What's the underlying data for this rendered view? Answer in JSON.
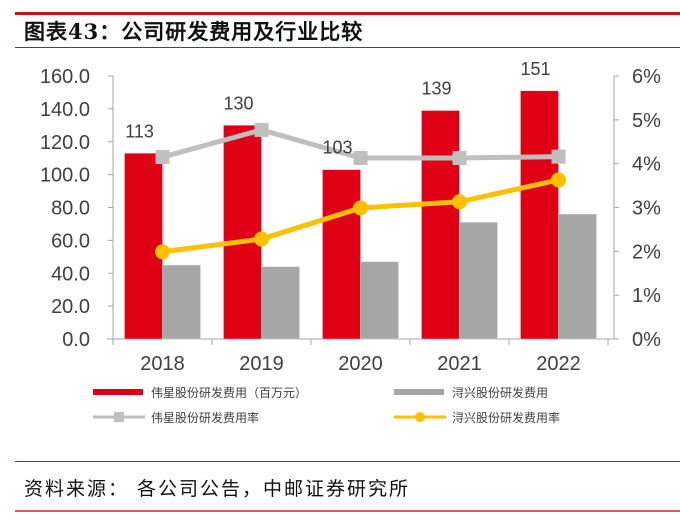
{
  "figure": {
    "title": "图表43：公司研发费用及行业比较",
    "source": "资料来源：  各公司公告，中邮证券研究所"
  },
  "colors": {
    "weixing_bar": "#e00015",
    "xunxing_bar": "#a6a6a6",
    "weixing_line": "#bfbfbf",
    "xunxing_line": "#ffc000",
    "accent_rule": "#c8101f",
    "axis": "#a6a6a6",
    "text": "#404040"
  },
  "chart_data": {
    "type": "bar",
    "title": "图表43：公司研发费用及行业比较",
    "categories": [
      "2018",
      "2019",
      "2020",
      "2021",
      "2022"
    ],
    "xlabel": "",
    "ylabel": "",
    "y_left": {
      "range": [
        0,
        160
      ],
      "ticks": [
        "0.0",
        "20.0",
        "40.0",
        "60.0",
        "80.0",
        "100.0",
        "120.0",
        "140.0",
        "160.0"
      ],
      "tick_values": [
        0,
        20,
        40,
        60,
        80,
        100,
        120,
        140,
        160
      ]
    },
    "y_right": {
      "range": [
        0,
        6
      ],
      "ticks": [
        "0%",
        "1%",
        "2%",
        "3%",
        "4%",
        "5%",
        "6%"
      ],
      "tick_values": [
        0,
        1,
        2,
        3,
        4,
        5,
        6
      ]
    },
    "grid": false,
    "legend_position": "bottom",
    "series": [
      {
        "name": "伟星股份研发费用（百万元）",
        "type": "bar",
        "axis": "left",
        "values": [
          113,
          130,
          103,
          139,
          151
        ],
        "data_labels": [
          "113",
          "130",
          "103",
          "139",
          "151"
        ]
      },
      {
        "name": "浔兴股份研发费用",
        "type": "bar",
        "axis": "left",
        "values": [
          45,
          44,
          47,
          71,
          76
        ]
      },
      {
        "name": "伟星股份研发费用率",
        "type": "line",
        "axis": "right",
        "marker": "square",
        "values": [
          4.15,
          4.77,
          4.13,
          4.13,
          4.16
        ]
      },
      {
        "name": "浔兴股份研发费用率",
        "type": "line",
        "axis": "right",
        "marker": "circle",
        "values": [
          1.99,
          2.28,
          2.99,
          3.13,
          3.63
        ]
      }
    ]
  }
}
